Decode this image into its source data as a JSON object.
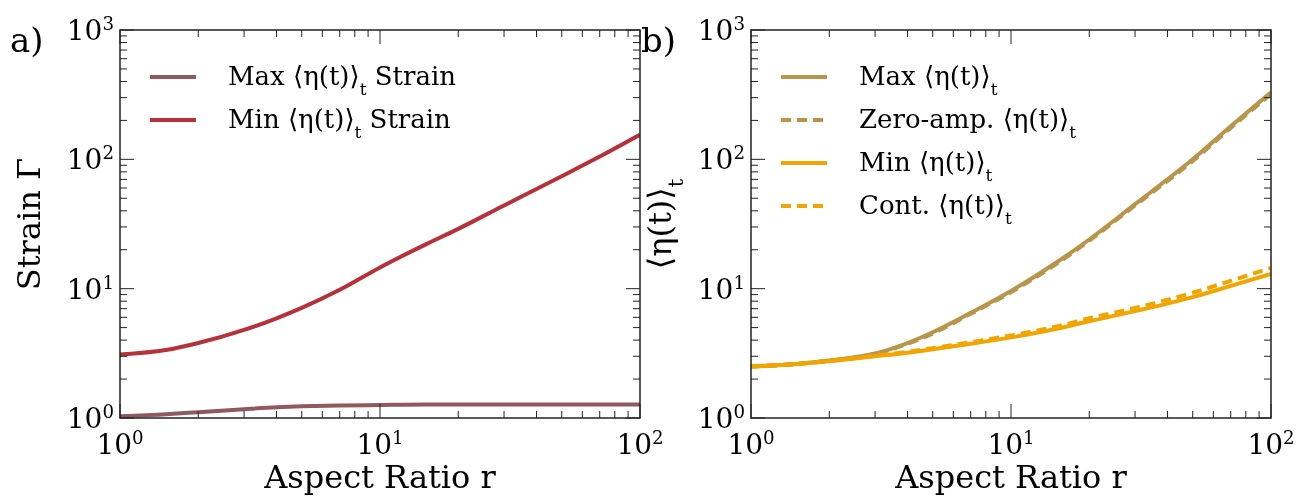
{
  "chart_data": [
    {
      "type": "line",
      "xlabel": "Aspect Ratio r",
      "ylabel": "Strain Γ",
      "annotations": [
        "a)"
      ],
      "log": "xy",
      "legend": "top left",
      "xlim": [
        1,
        100
      ],
      "xticks": [
        {
          "value": 1,
          "label": "10$^{0}$"
        },
        {
          "value": 10,
          "label": "10$^{1}$"
        },
        {
          "value": 100,
          "label": "10$^{2}$"
        }
      ],
      "ylim": [
        1,
        1000
      ],
      "yticks": [
        {
          "value": 1,
          "label": "10$^{0}$"
        },
        {
          "value": 10,
          "label": "10$^{1}$"
        },
        {
          "value": 100,
          "label": "10$^{2}$"
        },
        {
          "value": 1000,
          "label": "10$^{3}$"
        }
      ],
      "x": [
        1,
        1.5,
        2,
        3,
        4,
        5,
        7,
        10,
        15,
        20,
        30,
        50,
        70,
        100
      ],
      "series": [
        {
          "name": "Max ⟨η(t)⟩$_{t}$ Strain",
          "color": "#8e5a5e",
          "line_style": "solid",
          "values": [
            1.03,
            1.07,
            1.11,
            1.17,
            1.21,
            1.23,
            1.25,
            1.26,
            1.27,
            1.27,
            1.27,
            1.27,
            1.27,
            1.27
          ]
        },
        {
          "name": "Min ⟨η(t)⟩$_{t}$ Strain",
          "color": "#b5323a",
          "line_style": "solid",
          "values": [
            3.1,
            3.35,
            3.8,
            4.8,
            5.9,
            7.1,
            9.8,
            14.6,
            22,
            29,
            44,
            74,
            105,
            155
          ]
        }
      ]
    },
    {
      "type": "line",
      "xlabel": "Aspect Ratio r",
      "ylabel": "⟨η(t)⟩$_{t}$",
      "annotations": [
        "b)"
      ],
      "log": "xy",
      "legend": "top left",
      "xlim": [
        1,
        100
      ],
      "xticks": [
        {
          "value": 1,
          "label": "10$^{0}$"
        },
        {
          "value": 10,
          "label": "10$^{1}$"
        },
        {
          "value": 100,
          "label": "10$^{2}$"
        }
      ],
      "ylim": [
        1,
        1000
      ],
      "yticks": [
        {
          "value": 1,
          "label": "10$^{0}$"
        },
        {
          "value": 10,
          "label": "10$^{1}$"
        },
        {
          "value": 100,
          "label": "10$^{2}$"
        },
        {
          "value": 1000,
          "label": "10$^{3}$"
        }
      ],
      "x": [
        1,
        1.5,
        2,
        3,
        4,
        5,
        7,
        10,
        15,
        20,
        30,
        50,
        70,
        100
      ],
      "series": [
        {
          "name": "Max ⟨η(t)⟩$_{t}$",
          "color": "#b8954a",
          "line_style": "solid",
          "values": [
            2.5,
            2.62,
            2.78,
            3.15,
            3.8,
            4.6,
            6.5,
            9.6,
            16,
            24,
            45,
            100,
            180,
            330
          ]
        },
        {
          "name": "Zero-amp. ⟨η(t)⟩$_{t}$",
          "color": "#b8954a",
          "line_style": "dashed",
          "values": [
            2.5,
            2.62,
            2.78,
            3.12,
            3.75,
            4.5,
            6.4,
            9.4,
            15.6,
            23.5,
            44,
            97,
            175,
            320
          ]
        },
        {
          "name": "Min ⟨η(t)⟩$_{t}$",
          "color": "#f0a500",
          "line_style": "solid",
          "values": [
            2.5,
            2.62,
            2.75,
            3.0,
            3.2,
            3.4,
            3.75,
            4.2,
            4.9,
            5.6,
            6.7,
            8.6,
            10.5,
            13
          ]
        },
        {
          "name": "Cont. ⟨η(t)⟩$_{t}$",
          "color": "#f0a500",
          "line_style": "dashed",
          "values": [
            2.5,
            2.62,
            2.76,
            3.03,
            3.25,
            3.47,
            3.85,
            4.35,
            5.1,
            5.9,
            7.1,
            9.3,
            11.5,
            14.5
          ]
        }
      ]
    }
  ]
}
